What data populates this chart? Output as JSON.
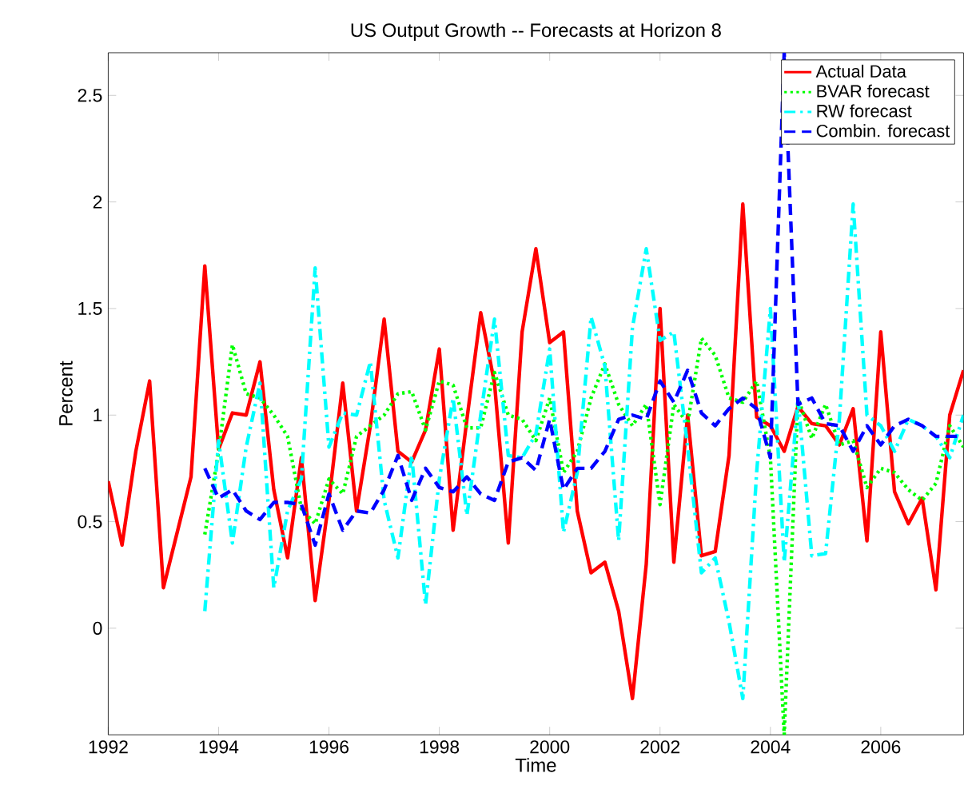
{
  "chart_data": {
    "type": "line",
    "title": "US Output Growth -- Forecasts at Horizon 8",
    "xlabel": "Time",
    "ylabel": "Percent",
    "xlim": [
      1992,
      2007.5
    ],
    "ylim": [
      -0.5,
      2.7
    ],
    "xticks": [
      1992,
      1994,
      1996,
      1998,
      2000,
      2002,
      2004,
      2006
    ],
    "yticks": [
      0,
      0.5,
      1,
      1.5,
      2,
      2.5
    ],
    "legend": "top right",
    "series": [
      {
        "name": "Actual Data",
        "color": "#ff0000",
        "line_style": "solid",
        "x": [
          1992,
          1992.25,
          1992.5,
          1992.75,
          1993,
          1993.25,
          1993.5,
          1993.75,
          1994,
          1994.25,
          1994.5,
          1994.75,
          1995,
          1995.25,
          1995.5,
          1995.75,
          1996,
          1996.25,
          1996.5,
          1996.75,
          1997,
          1997.25,
          1997.5,
          1997.75,
          1998,
          1998.25,
          1998.5,
          1998.75,
          1999,
          1999.25,
          1999.5,
          1999.75,
          2000,
          2000.25,
          2000.5,
          2000.75,
          2001,
          2001.25,
          2001.5,
          2001.75,
          2002,
          2002.25,
          2002.5,
          2002.75,
          2003,
          2003.25,
          2003.5,
          2003.75,
          2004,
          2004.25,
          2004.5,
          2004.75,
          2005,
          2005.25,
          2005.5,
          2005.75,
          2006,
          2006.25,
          2006.5,
          2006.75,
          2007,
          2007.25,
          2007.5
        ],
        "values": [
          0.69,
          0.39,
          0.83,
          1.16,
          0.19,
          0.45,
          0.71,
          1.7,
          0.84,
          1.01,
          1.0,
          1.25,
          0.65,
          0.33,
          0.8,
          0.13,
          0.6,
          1.15,
          0.55,
          0.95,
          1.45,
          0.83,
          0.78,
          0.93,
          1.31,
          0.46,
          0.98,
          1.48,
          1.15,
          0.4,
          1.39,
          1.78,
          1.34,
          1.39,
          0.55,
          0.26,
          0.31,
          0.08,
          -0.33,
          0.3,
          1.5,
          0.31,
          1.0,
          0.34,
          0.36,
          0.81,
          1.99,
          0.99,
          0.95,
          0.83,
          1.04,
          0.96,
          0.95,
          0.86,
          1.03,
          0.41,
          1.39,
          0.64,
          0.49,
          0.61,
          0.18,
          1.0,
          1.21
        ]
      },
      {
        "name": "BVAR forecast",
        "color": "#00ff00",
        "line_style": "dotted",
        "x": [
          1993.75,
          1994,
          1994.25,
          1994.5,
          1994.75,
          1995,
          1995.25,
          1995.5,
          1995.75,
          1996,
          1996.25,
          1996.5,
          1996.75,
          1997,
          1997.25,
          1997.5,
          1997.75,
          1998,
          1998.25,
          1998.5,
          1998.75,
          1999,
          1999.25,
          1999.5,
          1999.75,
          2000,
          2000.25,
          2000.5,
          2000.75,
          2001,
          2001.25,
          2001.5,
          2001.75,
          2002,
          2002.25,
          2002.5,
          2002.75,
          2003,
          2003.25,
          2003.5,
          2003.75,
          2004,
          2004.25,
          2004.5,
          2004.75,
          2005,
          2005.25,
          2005.5,
          2005.75,
          2006,
          2006.25,
          2006.5,
          2006.75,
          2007,
          2007.25,
          2007.5
        ],
        "values": [
          0.44,
          0.83,
          1.33,
          1.1,
          1.08,
          1.0,
          0.9,
          0.56,
          0.49,
          0.7,
          0.63,
          0.9,
          0.95,
          1.0,
          1.1,
          1.11,
          0.93,
          1.16,
          1.14,
          0.94,
          0.94,
          1.2,
          1.0,
          0.98,
          0.88,
          1.08,
          0.73,
          0.83,
          1.08,
          1.24,
          1.05,
          0.95,
          1.05,
          0.58,
          1.05,
          0.96,
          1.36,
          1.28,
          1.08,
          1.06,
          1.16,
          0.8,
          -0.5,
          1.08,
          0.89,
          1.05,
          0.86,
          0.88,
          0.66,
          0.75,
          0.73,
          0.65,
          0.6,
          0.68,
          0.95,
          0.85
        ]
      },
      {
        "name": "RW forecast",
        "color": "#00ffff",
        "line_style": "dashdot",
        "x": [
          1993.75,
          1994,
          1994.25,
          1994.5,
          1994.75,
          1995,
          1995.25,
          1995.5,
          1995.75,
          1996,
          1996.25,
          1996.5,
          1996.75,
          1997,
          1997.25,
          1997.5,
          1997.75,
          1998,
          1998.25,
          1998.5,
          1998.75,
          1999,
          1999.25,
          1999.5,
          1999.75,
          2000,
          2000.25,
          2000.5,
          2000.75,
          2001,
          2001.25,
          2001.5,
          2001.75,
          2002,
          2002.25,
          2002.5,
          2002.75,
          2003,
          2003.25,
          2003.5,
          2003.75,
          2004,
          2004.25,
          2004.5,
          2004.75,
          2005,
          2005.25,
          2005.5,
          2005.75,
          2006,
          2006.25,
          2006.5,
          2006.75,
          2007,
          2007.25,
          2007.5
        ],
        "values": [
          0.08,
          0.88,
          0.4,
          0.85,
          1.15,
          0.19,
          0.55,
          0.7,
          1.69,
          0.85,
          1.01,
          1.0,
          1.25,
          0.6,
          0.33,
          0.81,
          0.11,
          0.7,
          1.08,
          0.53,
          1.0,
          1.45,
          0.81,
          0.8,
          0.91,
          1.31,
          0.45,
          0.73,
          1.46,
          1.23,
          0.41,
          1.41,
          1.78,
          1.35,
          1.39,
          0.85,
          0.26,
          0.33,
          0.03,
          -0.33,
          0.73,
          1.5,
          0.31,
          1.08,
          0.34,
          0.35,
          0.98,
          1.99,
          1.0,
          0.95,
          0.83,
          0.98,
          0.95,
          0.9,
          0.8,
          1.0
        ]
      },
      {
        "name": "Combin. forecast",
        "color": "#0000ff",
        "line_style": "dashed",
        "x": [
          1993.75,
          1994,
          1994.25,
          1994.5,
          1994.75,
          1995,
          1995.25,
          1995.5,
          1995.75,
          1996,
          1996.25,
          1996.5,
          1996.75,
          1997,
          1997.25,
          1997.5,
          1997.75,
          1998,
          1998.25,
          1998.5,
          1998.75,
          1999,
          1999.25,
          1999.5,
          1999.75,
          2000,
          2000.25,
          2000.5,
          2000.75,
          2001,
          2001.25,
          2001.5,
          2001.75,
          2002,
          2002.25,
          2002.5,
          2002.75,
          2003,
          2003.25,
          2003.5,
          2003.75,
          2004,
          2004.25,
          2004.5,
          2004.75,
          2005,
          2005.25,
          2005.5,
          2005.75,
          2006,
          2006.25,
          2006.5,
          2006.75,
          2007,
          2007.25,
          2007.5
        ],
        "values": [
          0.75,
          0.61,
          0.65,
          0.55,
          0.51,
          0.59,
          0.59,
          0.58,
          0.39,
          0.63,
          0.46,
          0.55,
          0.54,
          0.65,
          0.81,
          0.6,
          0.75,
          0.66,
          0.64,
          0.71,
          0.63,
          0.6,
          0.78,
          0.8,
          0.74,
          0.98,
          0.65,
          0.75,
          0.75,
          0.83,
          0.98,
          1.0,
          0.98,
          1.16,
          1.06,
          1.21,
          1.01,
          0.95,
          1.03,
          1.08,
          1.03,
          0.8,
          2.7,
          1.05,
          1.08,
          0.96,
          0.95,
          0.83,
          0.95,
          0.86,
          0.95,
          0.98,
          0.95,
          0.9,
          0.9,
          0.9
        ]
      }
    ]
  }
}
